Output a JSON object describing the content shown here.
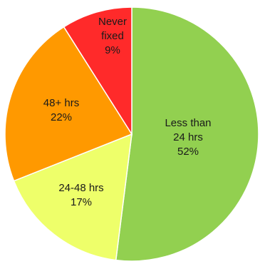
{
  "chart_data": {
    "type": "pie",
    "title": "",
    "start": "12 o'clock",
    "direction": "clockwise",
    "slices": [
      {
        "name": "Less than 24 hrs",
        "label_lines": [
          "Less than",
          "24 hrs",
          "52%"
        ],
        "value": 52,
        "color": "#92d050"
      },
      {
        "name": "24-48 hrs",
        "label_lines": [
          "24-48 hrs",
          "17%"
        ],
        "value": 17,
        "color": "#eeff6a"
      },
      {
        "name": "48+ hrs",
        "label_lines": [
          "48+ hrs",
          "22%"
        ],
        "value": 22,
        "color": "#ff9900"
      },
      {
        "name": "Never fixed",
        "label_lines": [
          "Never",
          "fixed",
          "9%"
        ],
        "value": 9,
        "color": "#ff2a2a"
      }
    ]
  }
}
